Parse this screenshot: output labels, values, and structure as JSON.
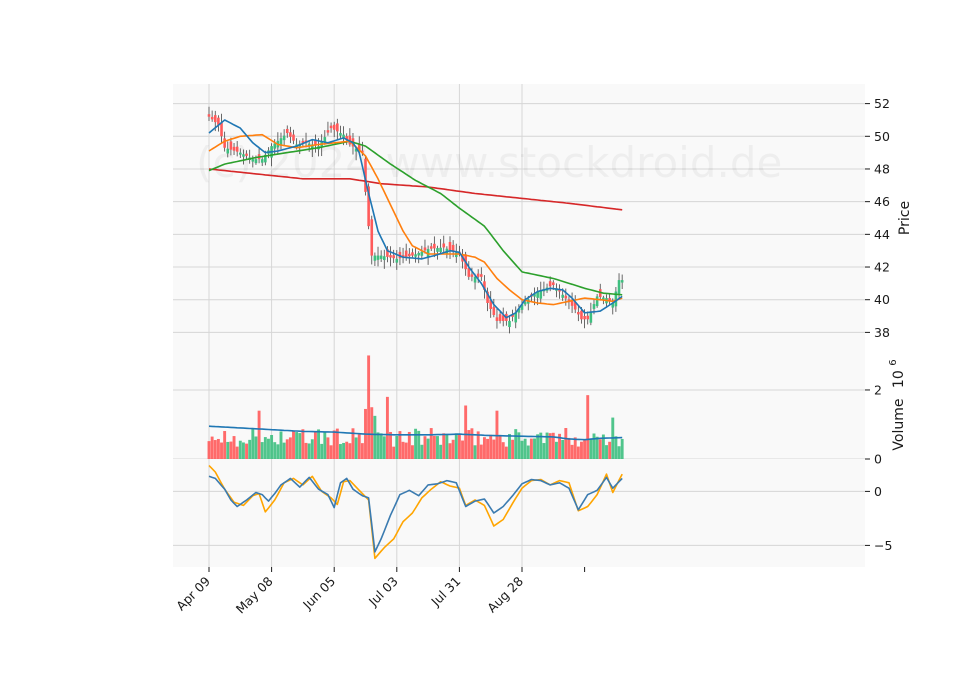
{
  "chart_data": {
    "type": "candlestick",
    "watermark": "(c) 2024 www.stockdroid.de",
    "colors": {
      "panel_bg": "#f9f9f9",
      "grid": "#d6d6d6",
      "up": "#3dbf7f",
      "down": "#ff5a5a",
      "sma_short": "#1f77b4",
      "sma_mid": "#ff7f0e",
      "sma_long": "#2ca02c",
      "sma_200": "#d62728",
      "indicator_a": "#3b7bb0",
      "indicator_b": "#ffa500",
      "volume_avg": "#1f77b4"
    },
    "x_tick_labels": [
      "Apr 09",
      "May 08",
      "Jun 05",
      "Jul 03",
      "Jul 31",
      "Aug 28"
    ],
    "price_panel": {
      "ylabel": "Price",
      "ylim": [
        36.8,
        53.2
      ],
      "yticks": [
        38,
        40,
        42,
        44,
        46,
        48,
        50,
        52
      ],
      "ytick_labels": [
        "38",
        "40",
        "42",
        "44",
        "46",
        "48",
        "50",
        "52"
      ],
      "close_anchors": [
        [
          0,
          51.2
        ],
        [
          3,
          50.7
        ],
        [
          5,
          49.3
        ],
        [
          10,
          49.0
        ],
        [
          14,
          48.6
        ],
        [
          17,
          48.6
        ],
        [
          20,
          49.4
        ],
        [
          25,
          50.2
        ],
        [
          28,
          49.5
        ],
        [
          31,
          49.6
        ],
        [
          35,
          49.4
        ],
        [
          39,
          50.5
        ],
        [
          43,
          50.1
        ],
        [
          45,
          49.5
        ],
        [
          49,
          49.0
        ],
        [
          50,
          46.6
        ],
        [
          51,
          44.5
        ],
        [
          52,
          42.7
        ],
        [
          55,
          42.7
        ],
        [
          60,
          42.5
        ],
        [
          65,
          42.7
        ],
        [
          70,
          43.1
        ],
        [
          75,
          43.2
        ],
        [
          80,
          42.8
        ],
        [
          83,
          41.4
        ],
        [
          87,
          41.4
        ],
        [
          89,
          39.8
        ],
        [
          92,
          38.7
        ],
        [
          96,
          38.7
        ],
        [
          100,
          39.7
        ],
        [
          105,
          40.5
        ],
        [
          110,
          40.9
        ],
        [
          113,
          40.3
        ],
        [
          117,
          39.4
        ],
        [
          119,
          38.8
        ],
        [
          121,
          38.8
        ],
        [
          124,
          40.2
        ],
        [
          127,
          40.1
        ],
        [
          129,
          39.8
        ],
        [
          131,
          41.2
        ],
        [
          132,
          41.2
        ]
      ],
      "sma_short_anchors": [
        [
          0,
          50.2
        ],
        [
          5,
          51.0
        ],
        [
          10,
          50.5
        ],
        [
          14,
          49.6
        ],
        [
          18,
          49.0
        ],
        [
          22,
          49.1
        ],
        [
          28,
          49.4
        ],
        [
          33,
          49.8
        ],
        [
          38,
          49.6
        ],
        [
          43,
          49.9
        ],
        [
          46,
          49.6
        ],
        [
          48,
          49.0
        ],
        [
          51,
          46.5
        ],
        [
          54,
          44.2
        ],
        [
          57,
          43.0
        ],
        [
          62,
          42.6
        ],
        [
          68,
          42.5
        ],
        [
          72,
          42.7
        ],
        [
          77,
          43.0
        ],
        [
          80,
          42.9
        ],
        [
          83,
          42.0
        ],
        [
          87,
          41.0
        ],
        [
          91,
          39.7
        ],
        [
          95,
          38.9
        ],
        [
          98,
          39.2
        ],
        [
          101,
          40.0
        ],
        [
          105,
          40.5
        ],
        [
          109,
          40.7
        ],
        [
          113,
          40.6
        ],
        [
          116,
          40.1
        ],
        [
          120,
          39.2
        ],
        [
          125,
          39.3
        ],
        [
          129,
          39.8
        ],
        [
          132,
          40.2
        ]
      ],
      "sma_mid_anchors": [
        [
          0,
          49.1
        ],
        [
          5,
          49.7
        ],
        [
          10,
          50.0
        ],
        [
          17,
          50.1
        ],
        [
          22,
          49.5
        ],
        [
          28,
          49.3
        ],
        [
          35,
          49.5
        ],
        [
          40,
          49.6
        ],
        [
          45,
          49.7
        ],
        [
          50,
          48.8
        ],
        [
          54,
          47.4
        ],
        [
          58,
          45.8
        ],
        [
          62,
          44.2
        ],
        [
          65,
          43.3
        ],
        [
          70,
          42.8
        ],
        [
          75,
          42.8
        ],
        [
          80,
          42.8
        ],
        [
          85,
          42.6
        ],
        [
          88,
          42.3
        ],
        [
          92,
          41.3
        ],
        [
          96,
          40.6
        ],
        [
          100,
          40.0
        ],
        [
          105,
          39.8
        ],
        [
          110,
          39.7
        ],
        [
          115,
          39.9
        ],
        [
          120,
          40.1
        ],
        [
          125,
          40.0
        ],
        [
          129,
          39.9
        ],
        [
          132,
          40.1
        ]
      ],
      "sma_long_anchors": [
        [
          0,
          47.9
        ],
        [
          5,
          48.3
        ],
        [
          15,
          48.7
        ],
        [
          25,
          49.0
        ],
        [
          35,
          49.3
        ],
        [
          45,
          49.7
        ],
        [
          50,
          49.4
        ],
        [
          58,
          48.3
        ],
        [
          66,
          47.3
        ],
        [
          74,
          46.5
        ],
        [
          80,
          45.6
        ],
        [
          88,
          44.5
        ],
        [
          94,
          43.0
        ],
        [
          100,
          41.7
        ],
        [
          105,
          41.5
        ],
        [
          110,
          41.3
        ],
        [
          115,
          41.0
        ],
        [
          120,
          40.7
        ],
        [
          126,
          40.4
        ],
        [
          132,
          40.3
        ]
      ],
      "sma_200_anchors": [
        [
          0,
          48.0
        ],
        [
          20,
          47.6
        ],
        [
          30,
          47.4
        ],
        [
          45,
          47.4
        ],
        [
          55,
          47.1
        ],
        [
          70,
          46.9
        ],
        [
          85,
          46.5
        ],
        [
          100,
          46.2
        ],
        [
          115,
          45.9
        ],
        [
          132,
          45.5
        ]
      ]
    },
    "volume_panel": {
      "ylabel": "Volume",
      "multiplier_label": "10",
      "multiplier_exponent": "6",
      "ylim": [
        0,
        3.1
      ],
      "yticks": [
        0,
        2
      ],
      "ytick_labels": [
        "0",
        "2"
      ],
      "avg_anchors": [
        [
          0,
          0.95
        ],
        [
          10,
          0.9
        ],
        [
          20,
          0.85
        ],
        [
          30,
          0.8
        ],
        [
          40,
          0.78
        ],
        [
          50,
          0.72
        ],
        [
          60,
          0.7
        ],
        [
          70,
          0.7
        ],
        [
          80,
          0.72
        ],
        [
          90,
          0.68
        ],
        [
          100,
          0.66
        ],
        [
          110,
          0.64
        ],
        [
          115,
          0.58
        ],
        [
          120,
          0.56
        ],
        [
          125,
          0.6
        ],
        [
          132,
          0.62
        ]
      ],
      "spikes": [
        [
          16,
          1.4
        ],
        [
          50,
          1.45
        ],
        [
          51,
          3.0
        ],
        [
          52,
          1.5
        ],
        [
          53,
          1.25
        ],
        [
          57,
          1.8
        ],
        [
          82,
          1.55
        ],
        [
          92,
          1.4
        ],
        [
          121,
          1.85
        ],
        [
          129,
          1.2
        ]
      ]
    },
    "indicator_panel": {
      "ylim": [
        -7,
        3
      ],
      "yticks": [
        -5,
        0
      ],
      "ytick_labels": [
        "−5",
        "0"
      ],
      "series_a_anchors": [
        [
          0,
          1.4
        ],
        [
          2,
          1.2
        ],
        [
          5,
          0.2
        ],
        [
          7,
          -0.8
        ],
        [
          9,
          -1.4
        ],
        [
          12,
          -0.8
        ],
        [
          15,
          -0.1
        ],
        [
          17,
          -0.3
        ],
        [
          19,
          -0.9
        ],
        [
          21,
          -0.2
        ],
        [
          23,
          0.6
        ],
        [
          26,
          1.2
        ],
        [
          29,
          0.4
        ],
        [
          32,
          1.3
        ],
        [
          35,
          0.2
        ],
        [
          38,
          -0.3
        ],
        [
          40,
          -1.5
        ],
        [
          42,
          0.8
        ],
        [
          44,
          1.2
        ],
        [
          46,
          0.2
        ],
        [
          49,
          -0.4
        ],
        [
          51,
          -0.6
        ],
        [
          53,
          -5.6
        ],
        [
          55,
          -4.4
        ],
        [
          58,
          -2.2
        ],
        [
          61,
          -0.3
        ],
        [
          64,
          0.1
        ],
        [
          67,
          -0.4
        ],
        [
          70,
          0.6
        ],
        [
          73,
          0.7
        ],
        [
          76,
          1.0
        ],
        [
          79,
          0.8
        ],
        [
          82,
          -1.4
        ],
        [
          85,
          -0.9
        ],
        [
          88,
          -0.7
        ],
        [
          91,
          -2.0
        ],
        [
          94,
          -1.4
        ],
        [
          97,
          -0.4
        ],
        [
          100,
          0.7
        ],
        [
          103,
          1.1
        ],
        [
          106,
          1.0
        ],
        [
          109,
          0.6
        ],
        [
          112,
          0.8
        ],
        [
          115,
          0.3
        ],
        [
          118,
          -1.7
        ],
        [
          121,
          -0.3
        ],
        [
          124,
          0.1
        ],
        [
          127,
          1.3
        ],
        [
          129,
          0.3
        ],
        [
          132,
          1.2
        ]
      ],
      "series_b_anchors": [
        [
          0,
          2.4
        ],
        [
          2,
          1.8
        ],
        [
          5,
          0.2
        ],
        [
          8,
          -1.0
        ],
        [
          11,
          -1.3
        ],
        [
          14,
          -0.4
        ],
        [
          16,
          -0.2
        ],
        [
          18,
          -1.9
        ],
        [
          21,
          -0.8
        ],
        [
          24,
          0.8
        ],
        [
          27,
          1.2
        ],
        [
          30,
          0.6
        ],
        [
          33,
          1.4
        ],
        [
          36,
          0.0
        ],
        [
          39,
          -0.6
        ],
        [
          41,
          -1.2
        ],
        [
          43,
          0.9
        ],
        [
          45,
          1.0
        ],
        [
          48,
          0.1
        ],
        [
          51,
          -0.8
        ],
        [
          53,
          -6.2
        ],
        [
          56,
          -5.2
        ],
        [
          59,
          -4.4
        ],
        [
          62,
          -2.8
        ],
        [
          65,
          -2.0
        ],
        [
          68,
          -0.6
        ],
        [
          71,
          0.2
        ],
        [
          74,
          0.9
        ],
        [
          77,
          0.5
        ],
        [
          80,
          0.3
        ],
        [
          82,
          -1.3
        ],
        [
          85,
          -0.8
        ],
        [
          88,
          -1.3
        ],
        [
          91,
          -3.2
        ],
        [
          94,
          -2.6
        ],
        [
          97,
          -1.1
        ],
        [
          100,
          0.3
        ],
        [
          103,
          1.0
        ],
        [
          106,
          1.1
        ],
        [
          109,
          0.6
        ],
        [
          112,
          1.0
        ],
        [
          115,
          0.8
        ],
        [
          118,
          -1.8
        ],
        [
          121,
          -1.4
        ],
        [
          124,
          -0.3
        ],
        [
          127,
          1.6
        ],
        [
          129,
          -0.1
        ],
        [
          132,
          1.6
        ]
      ]
    }
  }
}
